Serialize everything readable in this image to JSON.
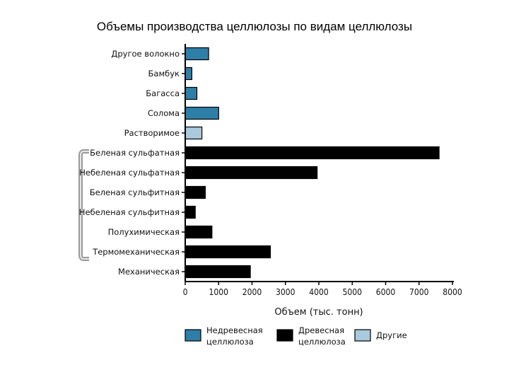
{
  "chart_data": {
    "type": "bar",
    "orientation": "horizontal",
    "title": "Объемы производства целлюлозы по видам целлюлозы",
    "xlabel": "Объем (тыс. тонн)",
    "xlim": [
      0,
      8000
    ],
    "xticks": [
      0,
      1000,
      2000,
      3000,
      4000,
      5000,
      6000,
      7000,
      8000
    ],
    "grid": false,
    "legend_position": "bottom",
    "categories": [
      "Другое волокно",
      "Бамбук",
      "Багасса",
      "Солома",
      "Растворимое",
      "Беленая сульфатная",
      "Небеленая сульфатная",
      "Беленая сульфитная",
      "Небеленая сульфитная",
      "Полухимическая",
      "Термомеханическая",
      "Механическая"
    ],
    "values": [
      700,
      200,
      350,
      1000,
      500,
      7600,
      3950,
      600,
      300,
      800,
      2550,
      1950
    ],
    "groups": [
      "nonwood",
      "nonwood",
      "nonwood",
      "nonwood",
      "other",
      "wood",
      "wood",
      "wood",
      "wood",
      "wood",
      "wood",
      "wood"
    ],
    "legend": [
      {
        "group": "nonwood",
        "lines": [
          "Недревесная",
          "целлюлоза"
        ],
        "color": "#2e7fa8"
      },
      {
        "group": "wood",
        "lines": [
          "Древесная",
          "целлюлоза"
        ],
        "color": "#000000"
      },
      {
        "group": "other",
        "lines": [
          "Другие"
        ],
        "color": "#a9c9dc"
      }
    ],
    "colors": {
      "nonwood": "#2e7fa8",
      "wood": "#000000",
      "other": "#a9c9dc",
      "axis": "#000000"
    }
  }
}
